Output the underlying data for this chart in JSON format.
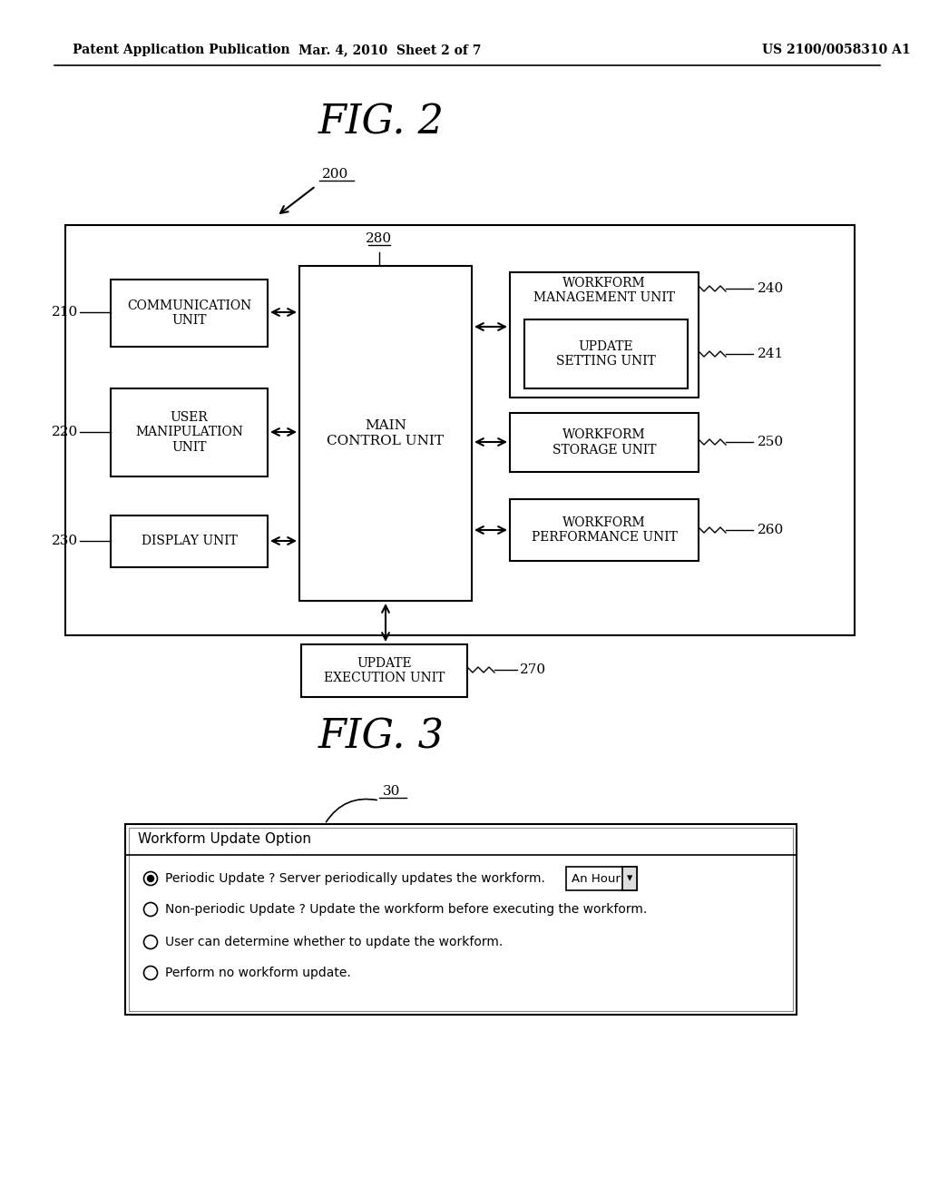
{
  "bg_color": "#ffffff",
  "header_left": "Patent Application Publication",
  "header_mid": "Mar. 4, 2010  Sheet 2 of 7",
  "header_right": "US 2100/0058310 A1",
  "fig2_title": "FIG. 2",
  "fig3_title": "FIG. 3",
  "label_200": "200",
  "label_280": "280",
  "label_210": "210",
  "label_220": "220",
  "label_230": "230",
  "label_240": "240",
  "label_241": "241",
  "label_250": "250",
  "label_260": "260",
  "label_270": "270",
  "label_30": "30",
  "box_comm": "COMMUNICATION\nUNIT",
  "box_user": "USER\nMANIPULATION\nUNIT",
  "box_disp": "DISPLAY UNIT",
  "box_main": "MAIN\nCONTROL UNIT",
  "box_wfm": "WORKFORM\nMANAGEMENT UNIT",
  "box_upd_set": "UPDATE\nSETTING UNIT",
  "box_wfs": "WORKFORM\nSTORAGE UNIT",
  "box_wfp": "WORKFORM\nPERFORMANCE UNIT",
  "box_upd_exec": "UPDATE\nEXECUTION UNIT",
  "dialog_title": "Workform Update Option",
  "radio_options": [
    {
      "selected": true,
      "text": "Periodic Update ? Server periodically updates the workform.",
      "has_dropdown": true,
      "dropdown_text": "An Hour"
    },
    {
      "selected": false,
      "text": "Non-periodic Update ? Update the workform before executing the workform.",
      "has_dropdown": false,
      "dropdown_text": ""
    },
    {
      "selected": false,
      "text": "User can determine whether to update the workform.",
      "has_dropdown": false,
      "dropdown_text": ""
    },
    {
      "selected": false,
      "text": "Perform no workform update.",
      "has_dropdown": false,
      "dropdown_text": ""
    }
  ]
}
